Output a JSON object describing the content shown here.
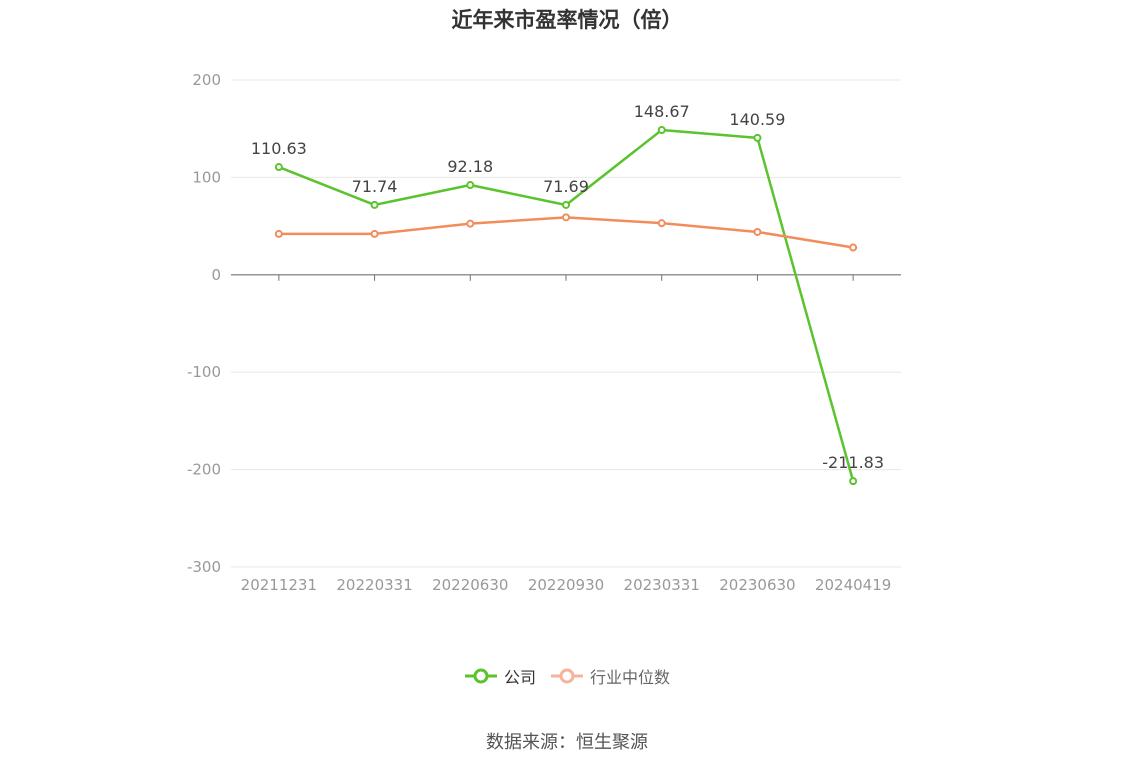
{
  "chart_data": {
    "type": "line",
    "title": "近年来市盈率情况（倍）",
    "categories": [
      "20211231",
      "20220331",
      "20220630",
      "20220930",
      "20230331",
      "20230630",
      "20240419"
    ],
    "series": [
      {
        "name": "公司",
        "values": [
          110.63,
          71.74,
          92.18,
          71.69,
          148.67,
          140.59,
          -211.83
        ],
        "labels": [
          "110.63",
          "71.74",
          "92.18",
          "71.69",
          "148.67",
          "140.59",
          "-211.83"
        ],
        "color": "#5bc32e"
      },
      {
        "name": "行业中位数",
        "values": [
          42,
          42,
          52.5,
          59,
          53,
          44,
          28
        ],
        "color": "#f28c5b"
      }
    ],
    "ylim": [
      -300,
      200
    ],
    "yticks": [
      "200",
      "100",
      "0",
      "-100",
      "-200",
      "-300"
    ],
    "grid": true,
    "legend_position": "bottom"
  },
  "legend": {
    "company": "公司",
    "industry": "行业中位数"
  },
  "source": "数据来源：恒生聚源",
  "colors": {
    "company": "#5bc32e",
    "industry": "#f28c5b",
    "industry_legend": "#f5b49a",
    "grid": "#e8e8e8",
    "axis": "#6e7079",
    "tick_text": "#999999",
    "label_text": "#444444"
  }
}
